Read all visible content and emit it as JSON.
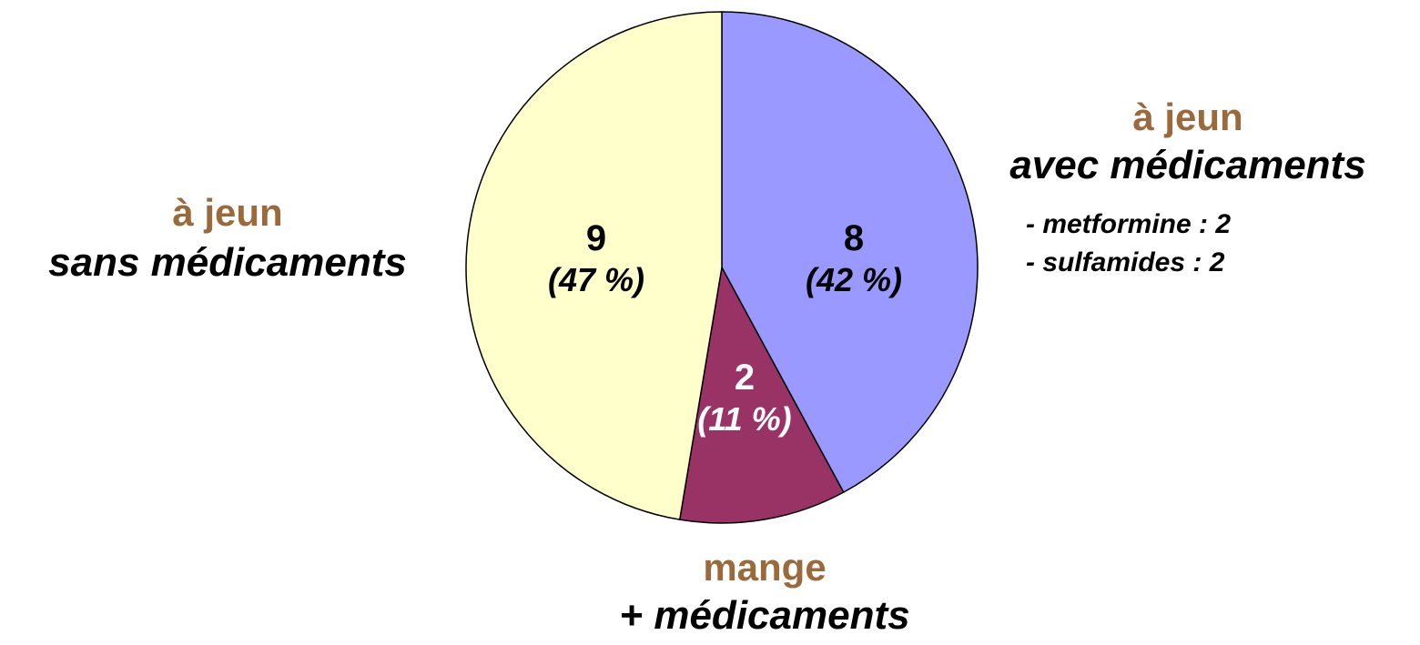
{
  "chart_data": {
    "type": "pie",
    "slices": [
      {
        "value": 8,
        "percent_label": "(42 %)",
        "color": "#9999ff",
        "label_color": "#000000"
      },
      {
        "value": 2,
        "percent_label": "(11 %)",
        "color": "#993366",
        "label_color": "#ffffff"
      },
      {
        "value": 9,
        "percent_label": "(47 %)",
        "color": "#ffffcc",
        "label_color": "#000000"
      }
    ],
    "start_angle_deg": 0,
    "direction": "clockwise"
  },
  "categories": {
    "right": {
      "line1": "à jeun",
      "line2": "avec médicaments",
      "items": [
        "- metformine : 2",
        "- sulfamides : 2"
      ]
    },
    "left": {
      "line1": "à jeun",
      "line2": "sans médicaments"
    },
    "bottom": {
      "line1": "mange",
      "line2": "+ médicaments"
    }
  },
  "colors": {
    "category_heading": "#9a6a3c"
  }
}
